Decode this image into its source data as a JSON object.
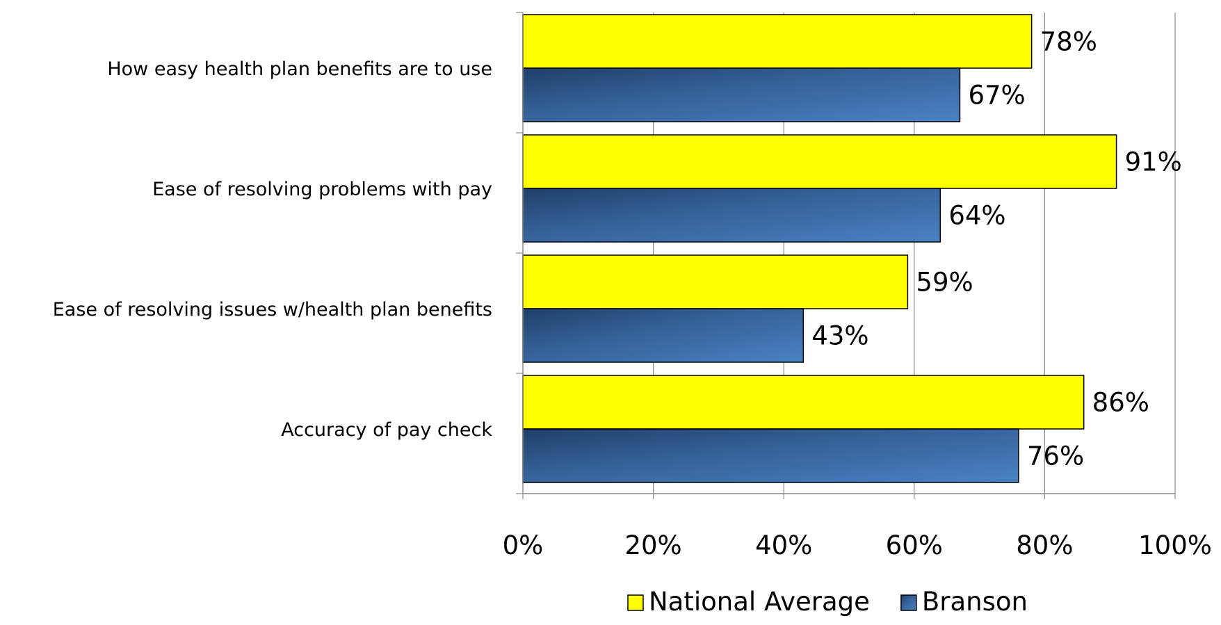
{
  "chart_data": {
    "type": "bar",
    "orientation": "horizontal",
    "categories": [
      "How easy health plan benefits are to use",
      "Ease of resolving problems with pay",
      "Ease of resolving issues w/health plan benefits",
      "Accuracy of pay check"
    ],
    "series": [
      {
        "name": "National Average",
        "values": [
          78,
          91,
          59,
          86
        ],
        "labels": [
          "78%",
          "91%",
          "59%",
          "86%"
        ],
        "color": "#FFFF00"
      },
      {
        "name": "Branson",
        "values": [
          67,
          64,
          43,
          76
        ],
        "labels": [
          "67%",
          "64%",
          "43%",
          "76%"
        ],
        "color": "#3E6DA9"
      }
    ],
    "xlim": [
      0,
      100
    ],
    "x_ticks": [
      "0%",
      "20%",
      "40%",
      "60%",
      "80%",
      "100%"
    ],
    "grid": "vertical",
    "legend": "bottom",
    "title": "",
    "xlabel": "",
    "ylabel": ""
  }
}
